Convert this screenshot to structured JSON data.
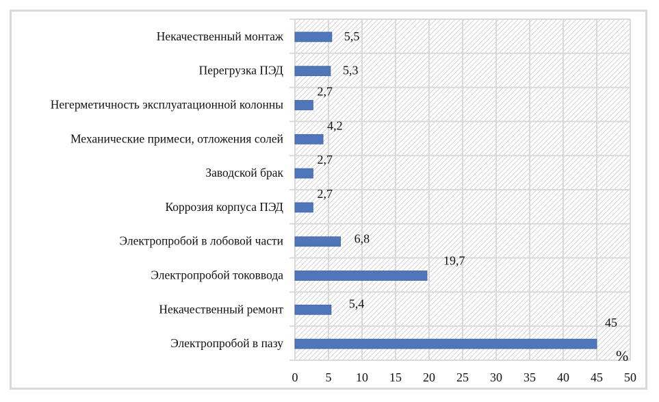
{
  "chart_data": {
    "type": "bar",
    "orientation": "horizontal",
    "title": "",
    "xlabel": "%",
    "ylabel": "",
    "xlim": [
      0,
      50
    ],
    "x_ticks": [
      0,
      5,
      10,
      15,
      20,
      25,
      30,
      35,
      40,
      45,
      50
    ],
    "grid": true,
    "background": "diagonal-hatch",
    "categories": [
      "Электропробой в пазу",
      "Некачественный ремонт",
      "Электропробой токоввода",
      "Электропробой в лобовой части",
      "Коррозия корпуса ПЭД",
      "Заводской брак",
      "Механические примеси, отложения солей",
      "Негерметичность эксплуатационной колонны",
      "Перегрузка ПЭД",
      "Некачественный монтаж"
    ],
    "values": [
      45,
      5.4,
      19.7,
      6.8,
      2.7,
      2.7,
      4.2,
      2.7,
      5.3,
      5.5
    ],
    "data_labels": [
      "45",
      "5,4",
      "19,7",
      "6,8",
      "2,7",
      "2,7",
      "4,2",
      "2,7",
      "5,3",
      "5,5"
    ],
    "colors": {
      "bar": "#4f76b9",
      "bar_edge": "#3f62a0",
      "grid": "#d9d9d9",
      "hatch": "#c8c8c8",
      "frame": "#d9d9d9"
    }
  }
}
